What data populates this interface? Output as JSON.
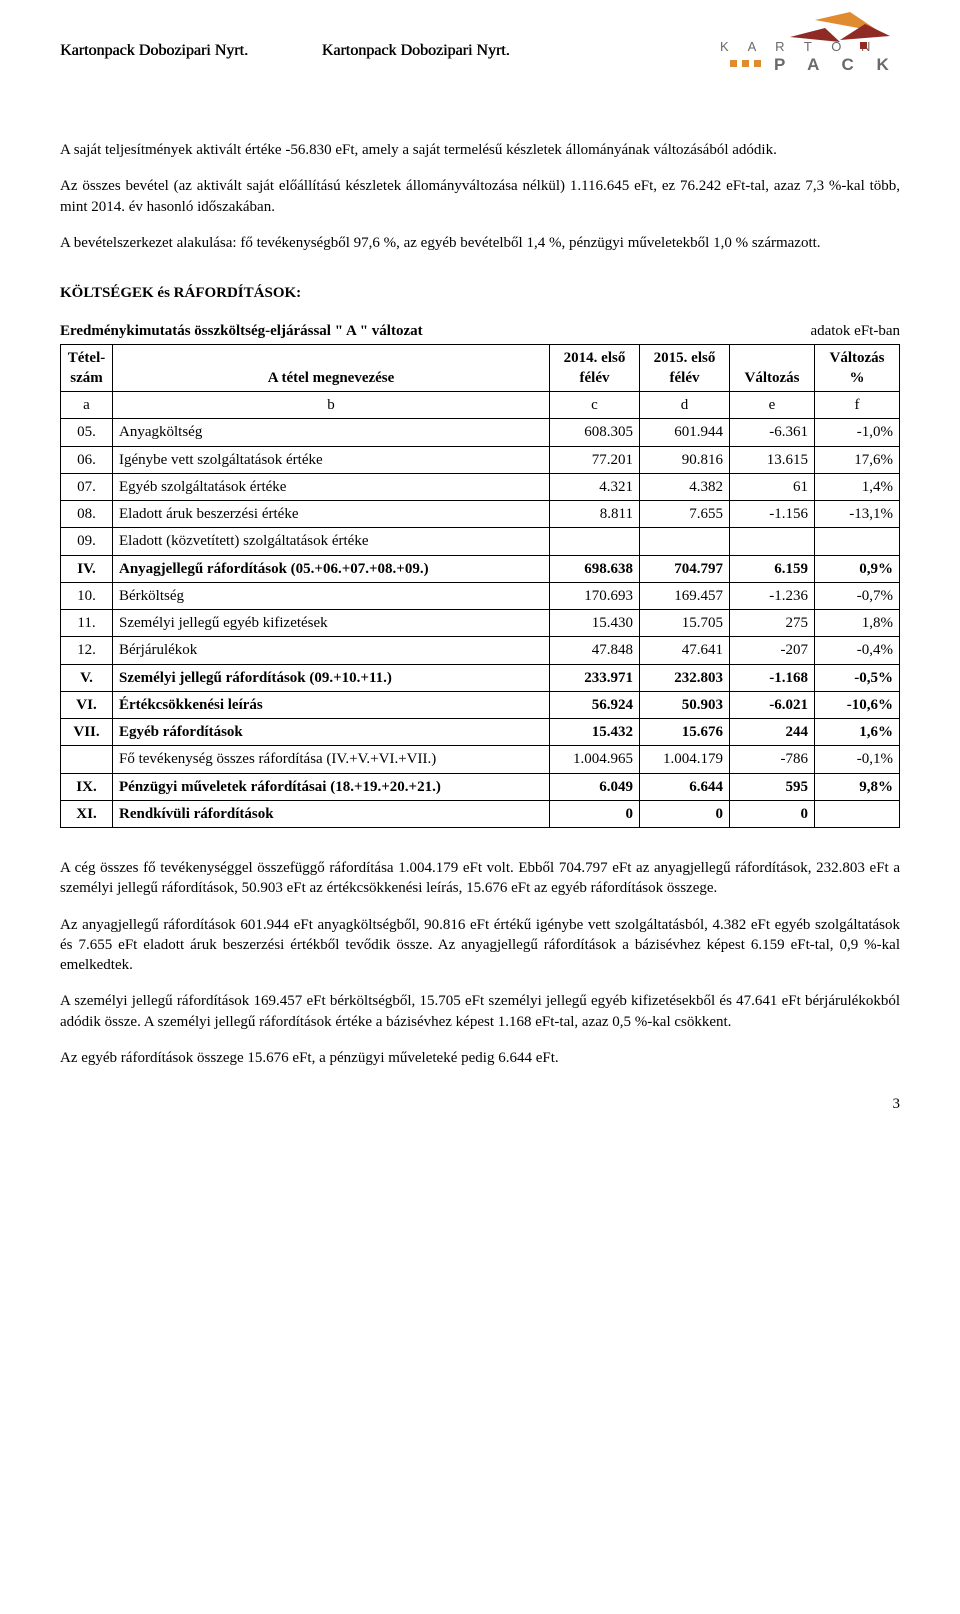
{
  "header": {
    "company_1": "Kartonpack Dobozipari Nyrt.",
    "company_2": "Kartonpack Dobozipari Nyrt.",
    "logo_top": "K A R T O N",
    "logo_bottom": "P A C K"
  },
  "paragraphs": {
    "p1": "A saját teljesítmények aktivált értéke -56.830 eFt, amely a saját termelésű készletek állományának változásából adódik.",
    "p2": "Az összes bevétel (az aktivált saját előállítású készletek állományváltozása nélkül) 1.116.645 eFt, ez 76.242 eFt-tal, azaz 7,3 %-kal több, mint 2014. év hasonló időszakában.",
    "p3": "A bevételszerkezet alakulása: fő tevékenységből 97,6 %, az egyéb bevételből 1,4 %, pénzügyi műveletekből 1,0 % származott."
  },
  "section_title": "KÖLTSÉGEK és RÁFORDÍTÁSOK:",
  "table": {
    "caption_left": "Eredménykimutatás összköltség-eljárással \" A \" változat",
    "caption_right": "adatok eFt-ban",
    "headers": {
      "col_a": "Tétel-szám",
      "col_b": "A tétel megnevezése",
      "col_c": "2014. első félév",
      "col_d": "2015. első félév",
      "col_e": "Változás",
      "col_f": "Változás %"
    },
    "subheaders": {
      "a": "a",
      "b": "b",
      "c": "c",
      "d": "d",
      "e": "e",
      "f": "f"
    },
    "rows": [
      {
        "a": "05.",
        "b": "Anyagköltség",
        "c": "608.305",
        "d": "601.944",
        "e": "-6.361",
        "f": "-1,0%",
        "bold": false
      },
      {
        "a": "06.",
        "b": "Igénybe vett szolgáltatások értéke",
        "c": "77.201",
        "d": "90.816",
        "e": "13.615",
        "f": "17,6%",
        "bold": false
      },
      {
        "a": "07.",
        "b": "Egyéb szolgáltatások értéke",
        "c": "4.321",
        "d": "4.382",
        "e": "61",
        "f": "1,4%",
        "bold": false
      },
      {
        "a": "08.",
        "b": "Eladott áruk beszerzési értéke",
        "c": "8.811",
        "d": "7.655",
        "e": "-1.156",
        "f": "-13,1%",
        "bold": false
      },
      {
        "a": "09.",
        "b": "Eladott (közvetített) szolgáltatások értéke",
        "c": "",
        "d": "",
        "e": "",
        "f": "",
        "bold": false
      },
      {
        "a": "IV.",
        "b": "Anyagjellegű ráfordítások (05.+06.+07.+08.+09.)",
        "c": "698.638",
        "d": "704.797",
        "e": "6.159",
        "f": "0,9%",
        "bold": true
      },
      {
        "a": "10.",
        "b": "Bérköltség",
        "c": "170.693",
        "d": "169.457",
        "e": "-1.236",
        "f": "-0,7%",
        "bold": false
      },
      {
        "a": "11.",
        "b": "Személyi jellegű egyéb kifizetések",
        "c": "15.430",
        "d": "15.705",
        "e": "275",
        "f": "1,8%",
        "bold": false
      },
      {
        "a": "12.",
        "b": "Bérjárulékok",
        "c": "47.848",
        "d": "47.641",
        "e": "-207",
        "f": "-0,4%",
        "bold": false
      },
      {
        "a": "V.",
        "b": "Személyi jellegű ráfordítások (09.+10.+11.)",
        "c": "233.971",
        "d": "232.803",
        "e": "-1.168",
        "f": "-0,5%",
        "bold": true
      },
      {
        "a": "VI.",
        "b": "Értékcsökkenési leírás",
        "c": "56.924",
        "d": "50.903",
        "e": "-6.021",
        "f": "-10,6%",
        "bold": true
      },
      {
        "a": "VII.",
        "b": "Egyéb ráfordítások",
        "c": "15.432",
        "d": "15.676",
        "e": "244",
        "f": "1,6%",
        "bold": true
      },
      {
        "a": "",
        "b": "Fő tevékenység összes ráfordítása (IV.+V.+VI.+VII.)",
        "c": "1.004.965",
        "d": "1.004.179",
        "e": "-786",
        "f": "-0,1%",
        "bold": false
      },
      {
        "a": "IX.",
        "b": "Pénzügyi műveletek ráfordításai (18.+19.+20.+21.)",
        "c": "6.049",
        "d": "6.644",
        "e": "595",
        "f": "9,8%",
        "bold": true
      },
      {
        "a": "XI.",
        "b": "Rendkívüli ráfordítások",
        "c": "0",
        "d": "0",
        "e": "0",
        "f": "",
        "bold": true
      }
    ]
  },
  "footer_paragraphs": {
    "f1": "A cég összes fő tevékenységgel összefüggő ráfordítása 1.004.179 eFt volt. Ebből 704.797 eFt az anyagjellegű ráfordítások, 232.803 eFt a személyi jellegű ráfordítások, 50.903 eFt az értékcsökkenési leírás, 15.676 eFt az egyéb ráfordítások összege.",
    "f2": "Az anyagjellegű ráfordítások 601.944 eFt anyagköltségből, 90.816 eFt értékű igénybe vett szolgáltatásból, 4.382 eFt egyéb szolgáltatások és 7.655 eFt eladott áruk beszerzési értékből tevődik össze. Az anyagjellegű ráfordítások a bázisévhez képest 6.159 eFt-tal, 0,9 %-kal emelkedtek.",
    "f3": "A személyi jellegű ráfordítások 169.457 eFt bérköltségből, 15.705 eFt személyi jellegű egyéb kifizetésekből és 47.641 eFt bérjárulékokból adódik össze. A személyi jellegű ráfordítások értéke a bázisévhez képest 1.168 eFt-tal, azaz 0,5 %-kal csökkent.",
    "f4": "Az egyéb ráfordítások összege 15.676 eFt, a pénzügyi műveleteké pedig 6.644 eFt."
  },
  "page_number": "3",
  "colors": {
    "text": "#000000",
    "background": "#ffffff",
    "logo_orange": "#e08b2f",
    "logo_darkred": "#8f2b24",
    "logo_gray": "#6a6a6a",
    "border": "#000000"
  }
}
